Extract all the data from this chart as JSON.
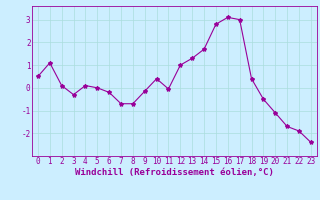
{
  "x": [
    0,
    1,
    2,
    3,
    4,
    5,
    6,
    7,
    8,
    9,
    10,
    11,
    12,
    13,
    14,
    15,
    16,
    17,
    18,
    19,
    20,
    21,
    22,
    23
  ],
  "y": [
    0.5,
    1.1,
    0.1,
    -0.3,
    0.1,
    0.0,
    -0.2,
    -0.7,
    -0.7,
    -0.15,
    0.4,
    -0.05,
    1.0,
    1.3,
    1.7,
    2.8,
    3.1,
    3.0,
    0.4,
    -0.5,
    -1.1,
    -1.7,
    -1.9,
    -2.4
  ],
  "line_color": "#990099",
  "marker": "*",
  "marker_size": 3,
  "background_color": "#cceeff",
  "xlabel": "Windchill (Refroidissement éolien,°C)",
  "xlabel_color": "#990099",
  "xlabel_fontsize": 6.5,
  "tick_color": "#990099",
  "tick_fontsize": 5.5,
  "ylim": [
    -3,
    3.6
  ],
  "yticks": [
    -2,
    -1,
    0,
    1,
    2,
    3
  ],
  "grid_color": "#aadddd",
  "line_width": 0.8
}
